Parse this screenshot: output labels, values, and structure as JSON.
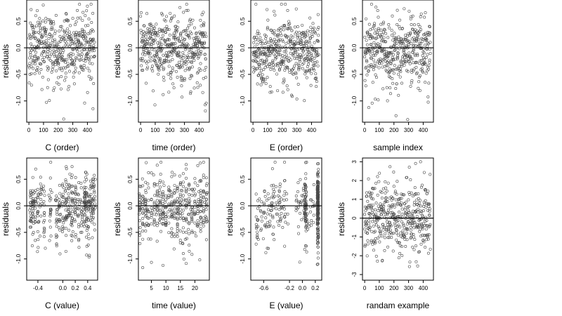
{
  "chart_data": [
    {
      "type": "scatter",
      "seed": 11,
      "pattern": "order-a",
      "n": 450,
      "xlabel": "C (order)",
      "ylabel": "residuals",
      "xlim": [
        -15,
        470
      ],
      "ylim": [
        -1.4,
        0.9
      ],
      "xticks": [
        0,
        100,
        200,
        300,
        400
      ],
      "xtick_labels": [
        "0",
        "100",
        "200",
        "300",
        "400"
      ],
      "yticks": [
        -1.0,
        -0.5,
        0.0,
        0.5
      ],
      "ytick_labels": [
        "-1.0",
        "-0.5",
        "0.0",
        "0.5"
      ],
      "hline": 0
    },
    {
      "type": "scatter",
      "seed": 23,
      "pattern": "order-b",
      "n": 450,
      "xlabel": "time (order)",
      "ylabel": "residuals",
      "xlim": [
        -15,
        470
      ],
      "ylim": [
        -1.4,
        0.9
      ],
      "xticks": [
        0,
        100,
        200,
        300,
        400
      ],
      "xtick_labels": [
        "0",
        "100",
        "200",
        "300",
        "400"
      ],
      "yticks": [
        -1.0,
        -0.5,
        0.0,
        0.5
      ],
      "ytick_labels": [
        "-1.0",
        "-0.5",
        "0.0",
        "0.5"
      ],
      "hline": 0
    },
    {
      "type": "scatter",
      "seed": 37,
      "pattern": "order-c",
      "n": 450,
      "xlabel": "E (order)",
      "ylabel": "residuals",
      "xlim": [
        -15,
        470
      ],
      "ylim": [
        -1.4,
        0.9
      ],
      "xticks": [
        0,
        100,
        200,
        300,
        400
      ],
      "xtick_labels": [
        "0",
        "100",
        "200",
        "300",
        "400"
      ],
      "yticks": [
        -1.0,
        -0.5,
        0.0,
        0.5
      ],
      "ytick_labels": [
        "-1.0",
        "-0.5",
        "0.0",
        "0.5"
      ],
      "hline": 0
    },
    {
      "type": "scatter",
      "seed": 41,
      "pattern": "order-d",
      "n": 450,
      "xlabel": "sample index",
      "ylabel": "residuals",
      "xlim": [
        -15,
        470
      ],
      "ylim": [
        -1.4,
        0.9
      ],
      "xticks": [
        0,
        100,
        200,
        300,
        400
      ],
      "xtick_labels": [
        "0",
        "100",
        "200",
        "300",
        "400"
      ],
      "yticks": [
        -1.0,
        -0.5,
        0.0,
        0.5
      ],
      "ytick_labels": [
        "-1.0",
        "-0.5",
        "0.0",
        "0.5"
      ],
      "hline": 0
    },
    {
      "type": "scatter",
      "seed": 53,
      "pattern": "value-c",
      "n": 450,
      "xlabel": "C (value)",
      "ylabel": "residuals",
      "xlim": [
        -0.58,
        0.56
      ],
      "ylim": [
        -1.4,
        0.9
      ],
      "xticks": [
        -0.4,
        0.0,
        0.2,
        0.4
      ],
      "xtick_labels": [
        "-0.4",
        "0.0",
        "0.2",
        "0.4"
      ],
      "yticks": [
        -1.0,
        -0.5,
        0.0,
        0.5
      ],
      "ytick_labels": [
        "-1.0",
        "-0.5",
        "0.0",
        "0.5"
      ],
      "hline": 0
    },
    {
      "type": "scatter",
      "seed": 67,
      "pattern": "value-time",
      "n": 450,
      "xlabel": "time (value)",
      "ylabel": "residuals",
      "xlim": [
        0.5,
        25
      ],
      "ylim": [
        -1.4,
        0.9
      ],
      "xticks": [
        5,
        10,
        15,
        20
      ],
      "xtick_labels": [
        "5",
        "10",
        "15",
        "20"
      ],
      "yticks": [
        -1.0,
        -0.5,
        0.0,
        0.5
      ],
      "ytick_labels": [
        "-1.0",
        "-0.5",
        "0.0",
        "0.5"
      ],
      "hline": 0
    },
    {
      "type": "scatter",
      "seed": 79,
      "pattern": "value-e",
      "n": 450,
      "xlabel": "E (value)",
      "ylabel": "residuals",
      "xlim": [
        -0.8,
        0.3
      ],
      "ylim": [
        -1.4,
        0.9
      ],
      "xticks": [
        -0.6,
        -0.2,
        0.0,
        0.2
      ],
      "xtick_labels": [
        "-0.6",
        "-0.2",
        "0.0",
        "0.2"
      ],
      "yticks": [
        -1.0,
        -0.5,
        0.0,
        0.5
      ],
      "ytick_labels": [
        "-1.0",
        "-0.5",
        "0.0",
        "0.5"
      ],
      "hline": 0
    },
    {
      "type": "scatter",
      "seed": 97,
      "pattern": "random",
      "n": 450,
      "xlabel": "randam example",
      "ylabel": "residuals",
      "xlim": [
        -15,
        470
      ],
      "ylim": [
        -3.3,
        3.2
      ],
      "xticks": [
        0,
        100,
        200,
        300,
        400
      ],
      "xtick_labels": [
        "0",
        "100",
        "200",
        "300",
        "400"
      ],
      "yticks": [
        -3,
        -2,
        -1,
        0,
        1,
        2,
        3
      ],
      "ytick_labels": [
        "-3",
        "-2",
        "-1",
        "0",
        "1",
        "2",
        "3"
      ],
      "hline": 0
    }
  ]
}
